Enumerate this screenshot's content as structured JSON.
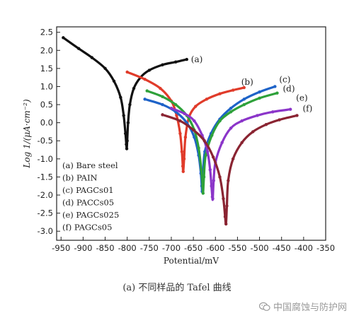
{
  "chart_data": {
    "type": "line",
    "title": "",
    "xlabel": "Potential/mV",
    "ylabel": "Log 1/(μA·cm⁻²)",
    "xlim": [
      -960,
      -350
    ],
    "ylim": [
      -3.25,
      2.65
    ],
    "xticks": [
      -950,
      -900,
      -850,
      -800,
      -750,
      -700,
      -650,
      -600,
      -550,
      -500,
      -450,
      -400,
      -350
    ],
    "yticks": [
      -3.0,
      -2.5,
      -2.0,
      -1.5,
      -1.0,
      -0.5,
      0.0,
      0.5,
      1.0,
      1.5,
      2.0,
      2.5
    ],
    "xtick_labels": [
      "-950",
      "-900",
      "-850",
      "-800",
      "-750",
      "-700",
      "-650",
      "-600",
      "-550",
      "-500",
      "-450",
      "-400",
      "-350"
    ],
    "ytick_labels": [
      "-3.0",
      "-2.5",
      "-2.0",
      "-1.5",
      "-1.0",
      "-0.5",
      "0.0",
      "0.5",
      "1.0",
      "1.5",
      "2.0",
      "2.5"
    ],
    "grid": false,
    "legend_position": "lower-left",
    "legend": [
      "(a) Bare steel",
      "(b) PAIN",
      "(c) PAGCs01",
      "(d) PACCs05",
      "(e) PAGCs025",
      "(f) PAGCs05"
    ],
    "series": [
      {
        "label": "(a)",
        "color": "#111111",
        "x": [
          -945,
          -910,
          -880,
          -850,
          -830,
          -815,
          -808,
          -804,
          -802,
          -801,
          -800,
          -798,
          -794,
          -785,
          -770,
          -750,
          -720,
          -690,
          -665
        ],
        "y": [
          2.35,
          2.05,
          1.8,
          1.5,
          1.15,
          0.7,
          0.2,
          -0.3,
          -0.6,
          -0.72,
          -0.5,
          0.0,
          0.5,
          0.95,
          1.25,
          1.45,
          1.6,
          1.68,
          1.75
        ]
      },
      {
        "label": "(b)",
        "color": "#e03b2a",
        "x": [
          -800,
          -760,
          -725,
          -700,
          -688,
          -680,
          -676,
          -674,
          -673,
          -671,
          -668,
          -660,
          -645,
          -620,
          -590,
          -560,
          -535
        ],
        "y": [
          1.4,
          1.2,
          0.95,
          0.6,
          0.2,
          -0.3,
          -0.8,
          -1.2,
          -1.35,
          -1.0,
          -0.4,
          0.15,
          0.45,
          0.65,
          0.8,
          0.9,
          0.97
        ]
      },
      {
        "label": "(c)",
        "color": "#1e63c8",
        "x": [
          -760,
          -720,
          -690,
          -665,
          -648,
          -638,
          -633,
          -631,
          -630,
          -628,
          -624,
          -610,
          -590,
          -565,
          -535,
          -500,
          -465
        ],
        "y": [
          0.65,
          0.5,
          0.3,
          0.0,
          -0.4,
          -0.9,
          -1.4,
          -1.75,
          -1.9,
          -1.4,
          -0.8,
          -0.3,
          0.1,
          0.4,
          0.65,
          0.85,
          1.0
        ]
      },
      {
        "label": "(d)",
        "color": "#2ea13a",
        "x": [
          -755,
          -720,
          -690,
          -665,
          -648,
          -638,
          -632,
          -629,
          -628,
          -626,
          -622,
          -608,
          -590,
          -565,
          -535,
          -500,
          -460
        ],
        "y": [
          0.88,
          0.72,
          0.5,
          0.2,
          -0.2,
          -0.7,
          -1.3,
          -1.75,
          -1.95,
          -1.5,
          -0.9,
          -0.35,
          0.05,
          0.3,
          0.5,
          0.68,
          0.82
        ]
      },
      {
        "label": "(e)",
        "color": "#8b35c9",
        "x": [
          -700,
          -670,
          -648,
          -630,
          -618,
          -612,
          -609,
          -607,
          -606,
          -604,
          -600,
          -585,
          -565,
          -540,
          -505,
          -470,
          -430
        ],
        "y": [
          0.4,
          0.25,
          0.05,
          -0.35,
          -0.8,
          -1.3,
          -1.75,
          -2.05,
          -2.1,
          -1.6,
          -1.1,
          -0.55,
          -0.15,
          0.05,
          0.2,
          0.3,
          0.37
        ]
      },
      {
        "label": "(f)",
        "color": "#8a2432",
        "x": [
          -720,
          -680,
          -650,
          -625,
          -605,
          -590,
          -582,
          -578,
          -576,
          -574,
          -571,
          -560,
          -540,
          -515,
          -485,
          -455,
          -415
        ],
        "y": [
          0.22,
          0.05,
          -0.2,
          -0.5,
          -0.95,
          -1.5,
          -2.1,
          -2.6,
          -2.8,
          -2.3,
          -1.6,
          -1.0,
          -0.55,
          -0.25,
          -0.05,
          0.08,
          0.2
        ]
      }
    ],
    "curve_labels": [
      "(a)",
      "(b)",
      "(c)",
      "(d)",
      "(e)",
      "(f)"
    ]
  },
  "caption": "(a) 不同样品的 Tafel 曲线",
  "watermark": {
    "text": "中国腐蚀与防护网",
    "icon": "wechat-icon"
  }
}
